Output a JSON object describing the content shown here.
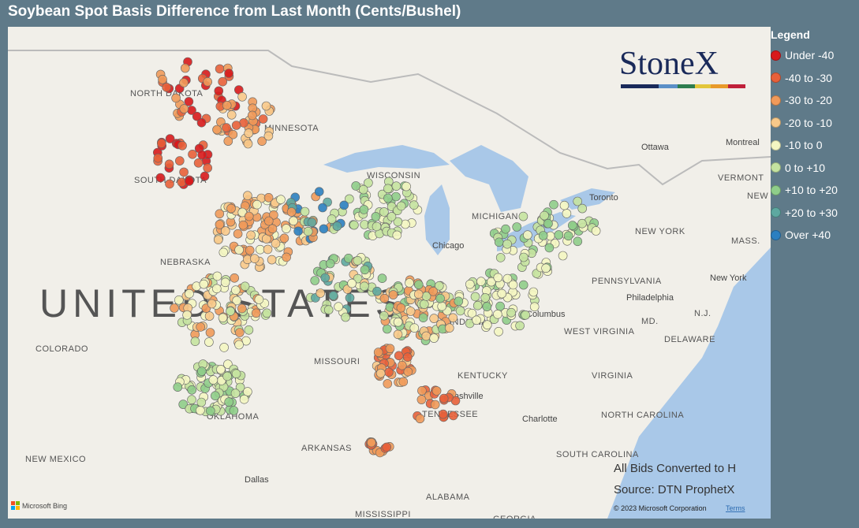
{
  "header": {
    "title": "Soybean Spot Basis Difference from Last Month (Cents/Bushel)"
  },
  "legend": {
    "title": "Legend",
    "items": [
      {
        "label": "Under -40",
        "color": "#d7191c"
      },
      {
        "label": "-40 to -30",
        "color": "#e8603a"
      },
      {
        "label": "-30 to -20",
        "color": "#f09a5a"
      },
      {
        "label": "-20 to -10",
        "color": "#f8c98a"
      },
      {
        "label": "-10 to 0",
        "color": "#f4f6c2"
      },
      {
        "label": "0 to +10",
        "color": "#c5e3a0"
      },
      {
        "label": "+10 to +20",
        "color": "#8fcd8a"
      },
      {
        "label": "+20 to +30",
        "color": "#5ea8a0"
      },
      {
        "label": "Over +40",
        "color": "#2b7fc0"
      }
    ]
  },
  "logo": "StoneX",
  "map": {
    "labels": [
      "NORTH DAKOTA",
      "SOUTH DAKOTA",
      "MINNESOTA",
      "NEBRASKA",
      "UNITED STATES",
      "COLORADO",
      "MISSOURI",
      "OKLAHOMA",
      "ARKANSAS",
      "NEW MEXICO",
      "Dallas",
      "ALABAMA",
      "MISSISSIPPI",
      "GEORGIA",
      "TENNESSEE",
      "Nashville",
      "KENTUCKY",
      "Charlotte",
      "NORTH CAROLINA",
      "SOUTH CAROLINA",
      "VIRGINIA",
      "WEST VIRGINIA",
      "Columbus",
      "PENNSYLVANIA",
      "Philadelphia",
      "MD.",
      "DELAWARE",
      "N.J.",
      "New York",
      "NEW YORK",
      "Ottawa",
      "Montreal",
      "VERMONT",
      "NEW HAMPSHIRE",
      "MASS.",
      "Toronto",
      "Chicago",
      "WISCONSIN",
      "MICHIGAN",
      "INDIANA"
    ]
  },
  "notes": [
    "All Bids Converted to H",
    "Source: DTN ProphetX"
  ],
  "attribution": {
    "bing": "Microsoft Bing",
    "copyright": "© 2023 Microsoft Corporation",
    "terms": "Terms"
  }
}
